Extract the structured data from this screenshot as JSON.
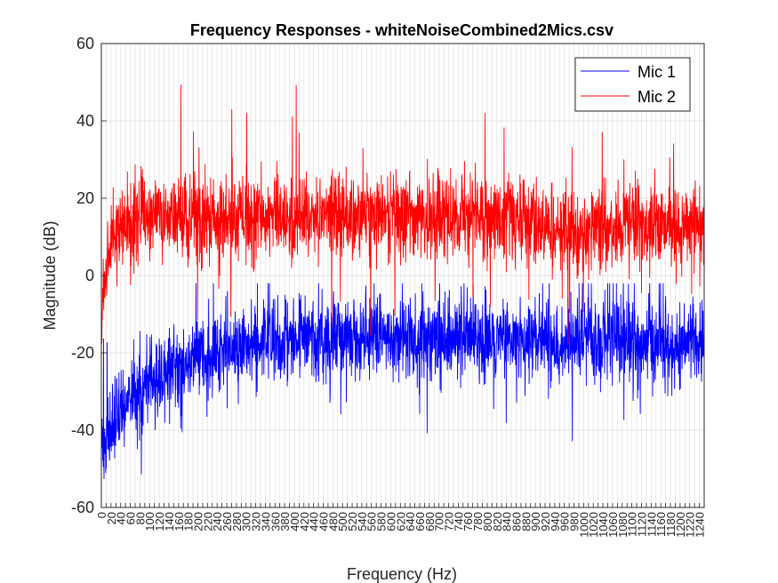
{
  "chart_data": {
    "type": "line",
    "title": "Frequency Responses - whiteNoiseCombined2Mics.csv",
    "xlabel": "Frequency (Hz)",
    "ylabel": "Magnitude (dB)",
    "xlim": [
      0,
      1250
    ],
    "ylim": [
      -60,
      60
    ],
    "yticks": [
      -60,
      -40,
      -20,
      0,
      20,
      40,
      60
    ],
    "ytick_labels": [
      "-60",
      "-40",
      "-20",
      "0",
      "20",
      "40",
      "60"
    ],
    "xtick_step": 10,
    "xtick_label_step": 20,
    "grid": true,
    "legend_location": "top-right",
    "series": [
      {
        "name": "Mic 1",
        "color": "#0000ff",
        "envelope_x": [
          0,
          10,
          20,
          40,
          80,
          120,
          160,
          200,
          300,
          400,
          600,
          800,
          900,
          950,
          1000,
          1050,
          1100,
          1150,
          1200,
          1250
        ],
        "envelope_mean_db": [
          -45,
          -42,
          -36,
          -32,
          -27,
          -24,
          -21,
          -19,
          -17,
          -15,
          -14,
          -14,
          -15,
          -16,
          -15,
          -14,
          -15,
          -16,
          -15,
          -14
        ],
        "min_db": -58,
        "max_db": -2
      },
      {
        "name": "Mic 2",
        "color": "#ff0000",
        "envelope_x": [
          0,
          10,
          20,
          40,
          80,
          120,
          160,
          200,
          300,
          400,
          600,
          800,
          900,
          950,
          1000,
          1050,
          1100,
          1150,
          1200,
          1250
        ],
        "envelope_mean_db": [
          -10,
          2,
          10,
          14,
          16,
          18,
          17,
          16,
          16,
          17,
          17,
          17,
          16,
          14,
          13,
          14,
          15,
          15,
          14,
          15
        ],
        "min_db": -25,
        "max_db": 50
      }
    ]
  }
}
